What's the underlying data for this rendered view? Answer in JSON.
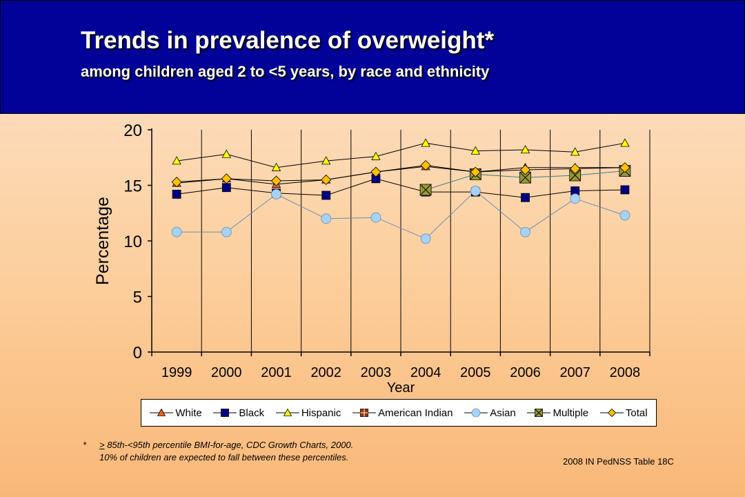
{
  "header": {
    "title": "Trends in prevalence of overweight*",
    "subtitle": "among children aged 2 to <5 years, by race and ethnicity"
  },
  "footnote": {
    "star": "*",
    "symbol": ">",
    "line1_rest": " 85th-<95th percentile BMI-for-age, CDC Growth Charts, 2000.",
    "line2": "10% of children are expected to fall between these percentiles."
  },
  "source": "2008 IN PedNSS Table 18C",
  "chart_data": {
    "type": "line",
    "xlabel": "Year",
    "ylabel": "Percentage",
    "ylim": [
      0,
      20
    ],
    "yticks": [
      "0",
      "5",
      "10",
      "15",
      "20"
    ],
    "categories": [
      "1999",
      "2000",
      "2001",
      "2002",
      "2003",
      "2004",
      "2005",
      "2006",
      "2007",
      "2008"
    ],
    "grid": "vertical category lines",
    "legend_position": "bottom",
    "series": [
      {
        "name": "White",
        "marker": "triangle",
        "color": "#e8641e",
        "values": [
          15.2,
          15.6,
          15.1,
          15.5,
          16.2,
          16.7,
          16.2,
          16.6,
          16.6,
          16.6
        ]
      },
      {
        "name": "Black",
        "marker": "square",
        "color": "#000080",
        "values": [
          14.2,
          14.8,
          14.3,
          14.1,
          15.6,
          14.4,
          14.4,
          13.9,
          14.5,
          14.6
        ]
      },
      {
        "name": "Hispanic",
        "marker": "triangle",
        "color": "#ffff00",
        "values": [
          17.2,
          17.8,
          16.6,
          17.2,
          17.6,
          18.8,
          18.1,
          18.2,
          18.0,
          18.8
        ]
      },
      {
        "name": "American Indian",
        "marker": "square-cross",
        "color": "#993300",
        "values": [
          null,
          null,
          null,
          null,
          null,
          null,
          null,
          null,
          null,
          null
        ]
      },
      {
        "name": "Asian",
        "marker": "circle",
        "color": "#a6d2f5",
        "values": [
          10.8,
          10.8,
          14.2,
          12.0,
          12.1,
          10.2,
          14.5,
          10.8,
          13.8,
          12.3
        ]
      },
      {
        "name": "Multiple",
        "marker": "square-x",
        "color": "#999933",
        "values": [
          null,
          null,
          null,
          null,
          null,
          14.6,
          16.0,
          15.7,
          15.9,
          16.3
        ]
      },
      {
        "name": "Total",
        "marker": "diamond",
        "color": "#ffc000",
        "values": [
          15.3,
          15.6,
          15.4,
          15.5,
          16.2,
          16.8,
          16.2,
          16.4,
          16.5,
          16.6
        ]
      }
    ]
  }
}
